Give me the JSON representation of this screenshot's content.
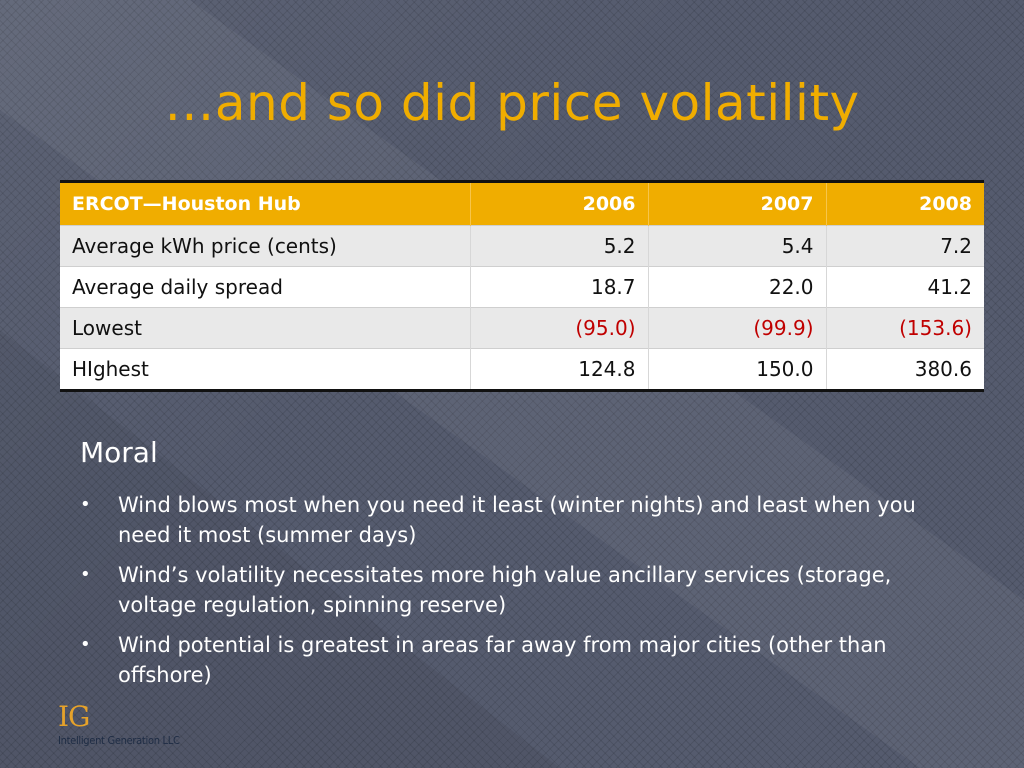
{
  "slide": {
    "title": "…and so did price volatility"
  },
  "table": {
    "headers": [
      "ERCOT—Houston Hub",
      "2006",
      "2007",
      "2008"
    ],
    "rows": [
      {
        "label": "Average kWh price (cents)",
        "values": [
          "5.2",
          "5.4",
          "7.2"
        ]
      },
      {
        "label": "Average daily spread",
        "values": [
          "18.7",
          "22.0",
          "41.2"
        ]
      },
      {
        "label": "Lowest",
        "values": [
          "(95.0)",
          "(99.9)",
          "(153.6)"
        ]
      },
      {
        "label": "HIghest",
        "values": [
          "124.8",
          "150.0",
          "380.6"
        ]
      }
    ],
    "negative_color": "#c00000",
    "header_color": "#f0ad00"
  },
  "moral": {
    "heading": "Moral",
    "bullet_glyph": "•",
    "bullets": [
      "Wind blows most when you need it least (winter nights) and least when you need it most (summer days)",
      "Wind’s volatility necessitates more high value ancillary services (storage, voltage regulation, spinning reserve)",
      "Wind potential is greatest in areas far away from major cities (other than offshore)"
    ]
  },
  "logo": {
    "mark": "IG",
    "company": "Intelligent Generation LLC"
  }
}
